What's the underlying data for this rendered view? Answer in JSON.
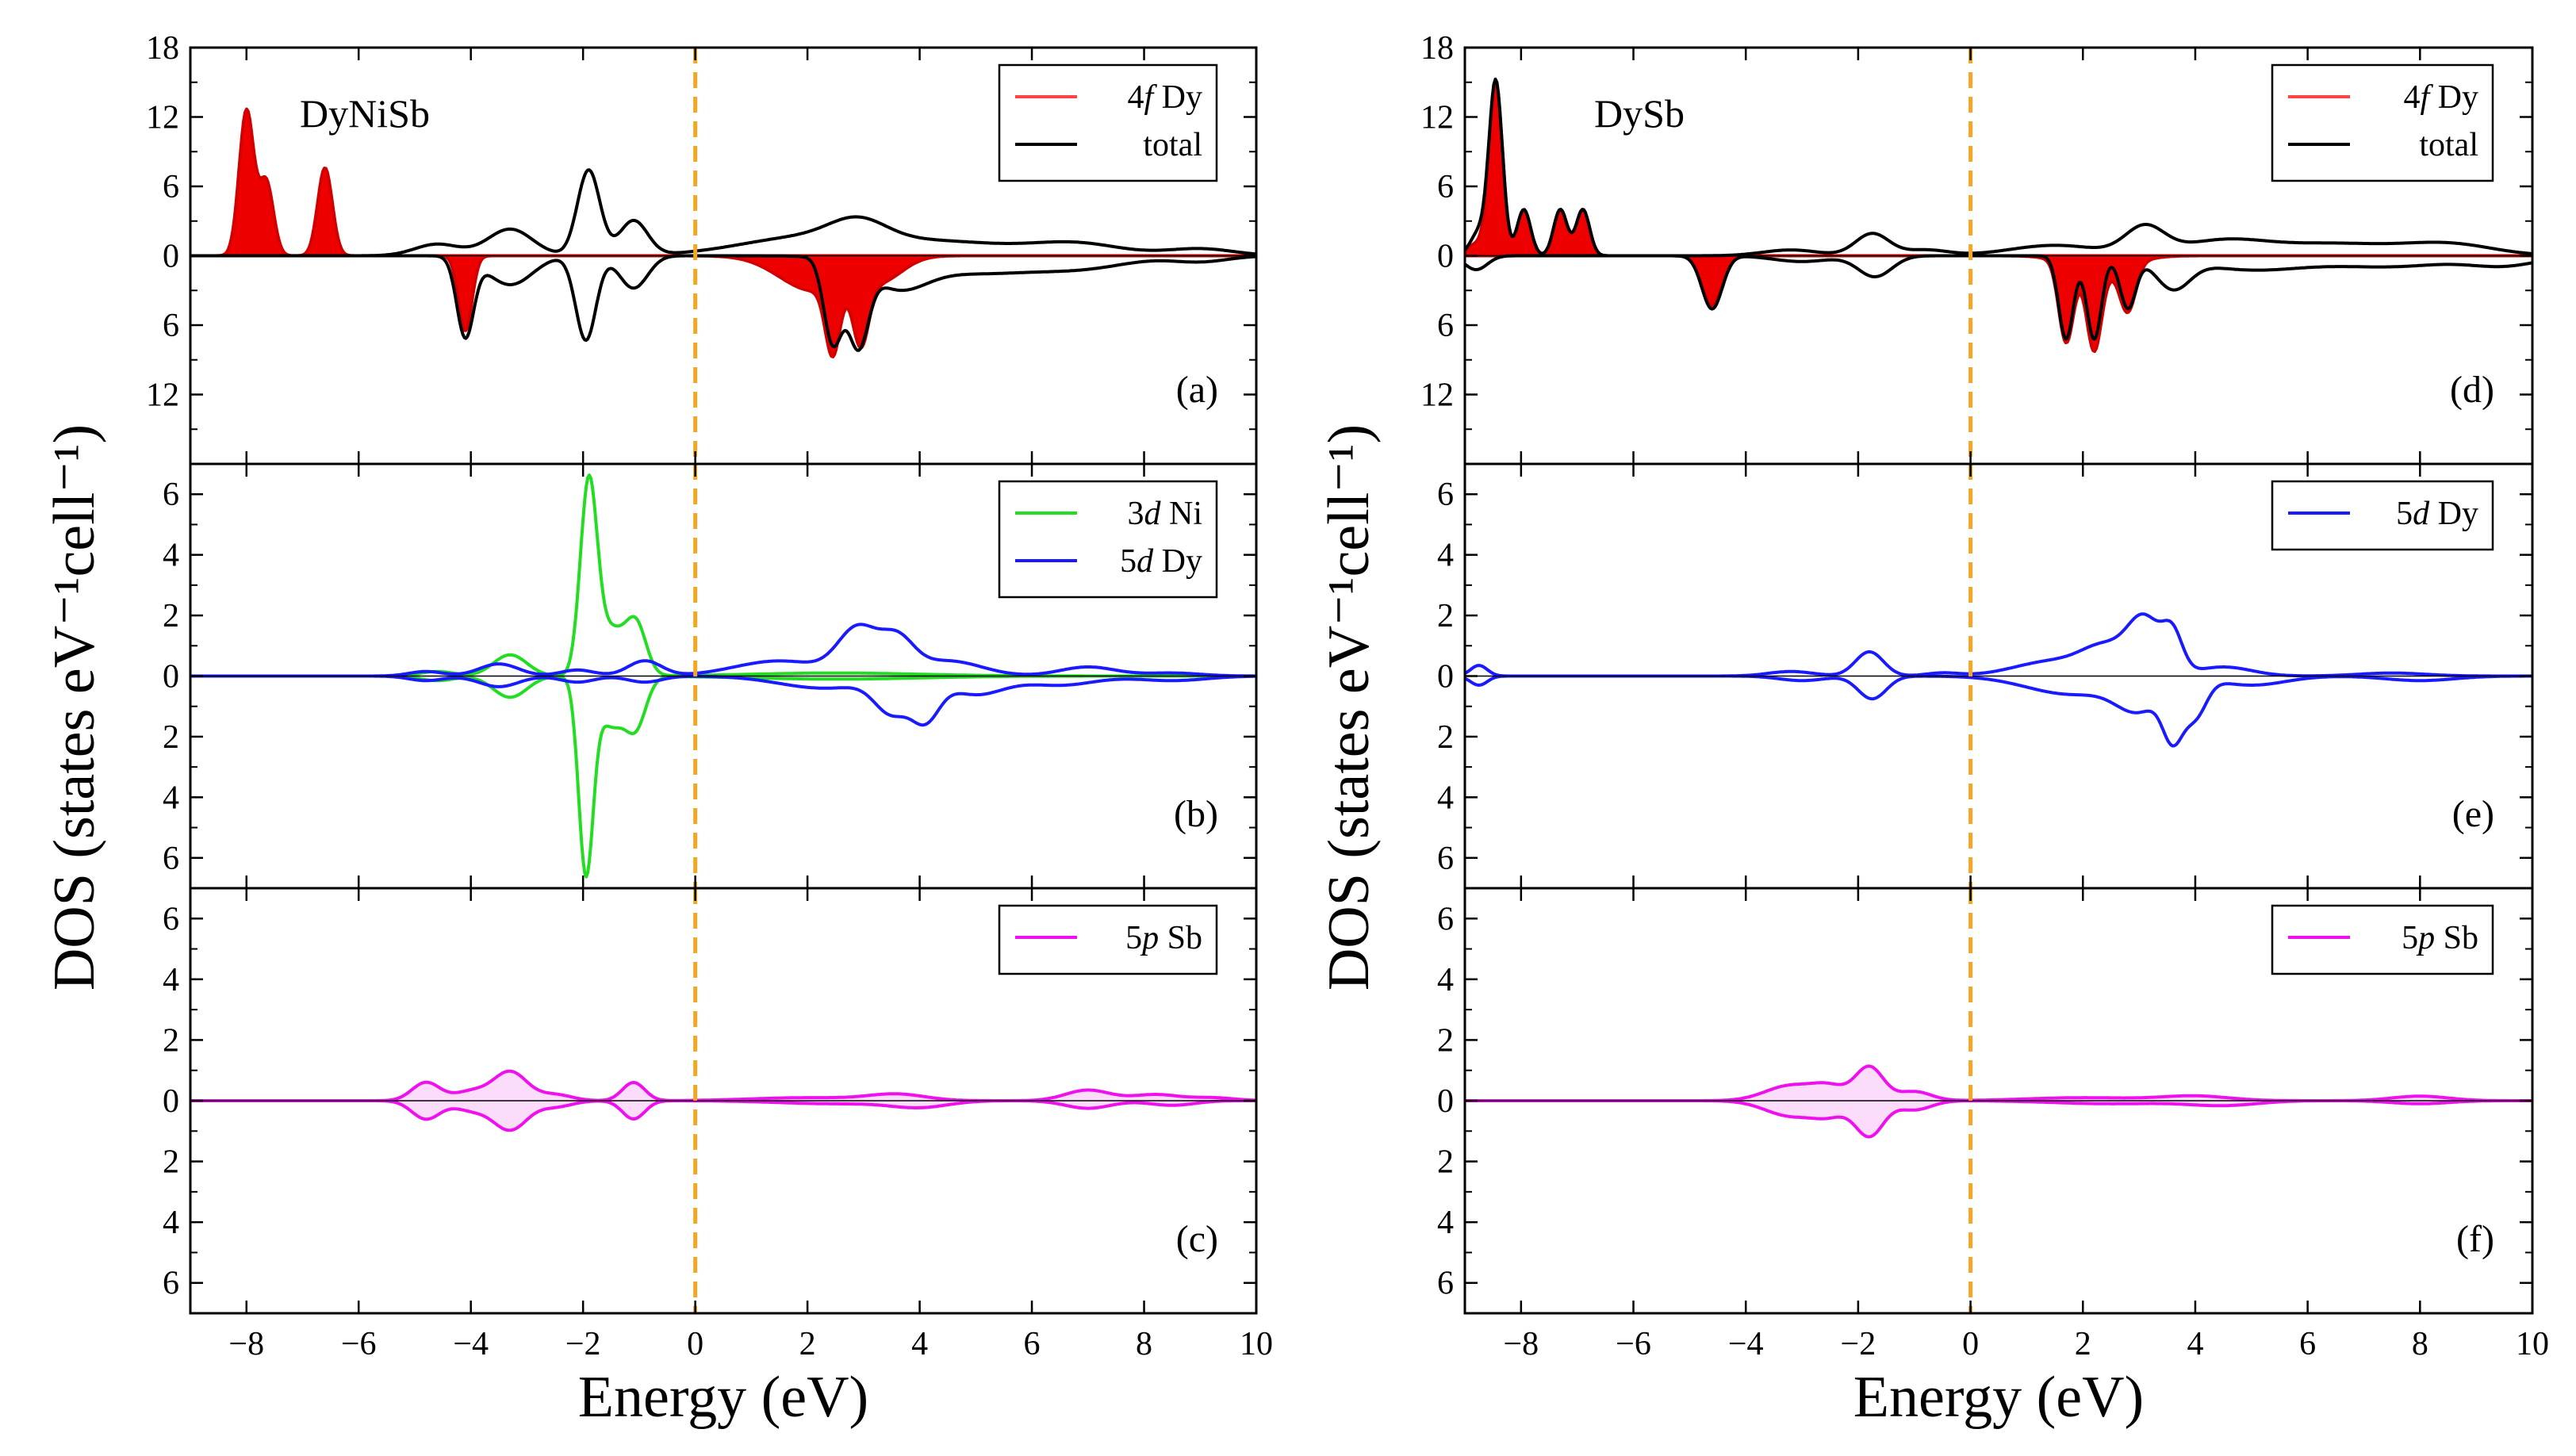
{
  "figure": {
    "ylabel": "DOS (states eV⁻¹cell⁻¹)",
    "fermi_color": "#f5a623"
  },
  "chart_data": [
    {
      "type": "line",
      "id": "a",
      "column": "left",
      "row": 0,
      "title": "DyNiSb",
      "panel_label": "(a)",
      "xlabel": "Energy (eV)",
      "xlim": [
        -9,
        10
      ],
      "xticks": [
        -8,
        -6,
        -4,
        -2,
        0,
        2,
        4,
        6,
        8,
        10
      ],
      "ylim_up": 18,
      "ylim_down": 18,
      "yticks_up": [
        18,
        12,
        6,
        0
      ],
      "yticks_down": [
        6,
        12
      ],
      "legend": [
        {
          "prefix": "4",
          "orb": "f",
          "suffix": " Dy",
          "color": "#ff4444"
        },
        {
          "prefix": "",
          "orb": "",
          "suffix": "total",
          "color": "#000000"
        }
      ],
      "series": [
        {
          "name": "4f Dy up",
          "color": "#d40000",
          "fill": "#ee0000",
          "spin": "up",
          "peaks": [
            [
              -8.0,
              12.5,
              0.13
            ],
            [
              -7.65,
              6.4,
              0.13
            ],
            [
              -6.6,
              7.6,
              0.13
            ]
          ]
        },
        {
          "name": "4f Dy down",
          "color": "#d40000",
          "fill": "#ee0000",
          "spin": "down",
          "peaks": [
            [
              -4.1,
              6.5,
              0.12
            ],
            [
              2.1,
              3.0,
              0.6
            ],
            [
              2.45,
              6.0,
              0.13
            ],
            [
              2.95,
              5.5,
              0.14
            ],
            [
              3.3,
              2.0,
              0.4
            ]
          ]
        },
        {
          "name": "total up",
          "color": "#000000",
          "spin": "up",
          "peaks": [
            [
              -4.6,
              1.0,
              0.4
            ],
            [
              -3.3,
              2.3,
              0.4
            ],
            [
              -1.9,
              7.4,
              0.2
            ],
            [
              -1.1,
              3.0,
              0.25
            ],
            [
              2.0,
              1.6,
              1.2
            ],
            [
              2.9,
              1.7,
              0.5
            ],
            [
              4.5,
              1.1,
              1.2
            ],
            [
              6.8,
              1.0,
              0.8
            ],
            [
              9.0,
              0.6,
              0.6
            ]
          ]
        },
        {
          "name": "total down",
          "color": "#000000",
          "spin": "down",
          "peaks": [
            [
              -4.1,
              6.8,
              0.15
            ],
            [
              -3.3,
              2.5,
              0.4
            ],
            [
              -1.95,
              7.3,
              0.18
            ],
            [
              -1.1,
              2.8,
              0.25
            ],
            [
              2.45,
              7.2,
              0.16
            ],
            [
              2.9,
              6.9,
              0.18
            ],
            [
              3.6,
              2.2,
              0.5
            ],
            [
              5.0,
              1.5,
              1.2
            ],
            [
              7.0,
              0.8,
              0.8
            ],
            [
              9.0,
              0.5,
              0.5
            ]
          ]
        }
      ]
    },
    {
      "type": "line",
      "id": "b",
      "column": "left",
      "row": 1,
      "title": "",
      "panel_label": "(b)",
      "xlabel": "Energy (eV)",
      "xlim": [
        -9,
        10
      ],
      "xticks": [
        -8,
        -6,
        -4,
        -2,
        0,
        2,
        4,
        6,
        8,
        10
      ],
      "ylim_up": 7,
      "ylim_down": 7,
      "yticks_up": [
        6,
        4,
        2,
        0
      ],
      "yticks_down": [
        2,
        4,
        6
      ],
      "legend": [
        {
          "prefix": "3",
          "orb": "d",
          "suffix": " Ni",
          "color": "#22dd22"
        },
        {
          "prefix": "5",
          "orb": "d",
          "suffix": " Dy",
          "color": "#1a1aff"
        }
      ],
      "series": [
        {
          "name": "3d Ni up",
          "color": "#22dd22",
          "spin": "up",
          "peaks": [
            [
              -3.3,
              0.7,
              0.3
            ],
            [
              -1.9,
              6.2,
              0.15
            ],
            [
              -1.5,
              1.5,
              0.25
            ],
            [
              -1.05,
              1.6,
              0.18
            ],
            [
              -4.6,
              0.15,
              0.3
            ],
            [
              2.5,
              0.1,
              1.5
            ]
          ]
        },
        {
          "name": "3d Ni down",
          "color": "#22dd22",
          "spin": "down",
          "peaks": [
            [
              -3.3,
              0.7,
              0.3
            ],
            [
              -1.95,
              6.3,
              0.13
            ],
            [
              -1.5,
              1.6,
              0.25
            ],
            [
              -1.05,
              1.5,
              0.18
            ],
            [
              -4.6,
              0.15,
              0.3
            ],
            [
              2.5,
              0.1,
              1.5
            ]
          ]
        },
        {
          "name": "5d Dy up",
          "color": "#1a1aff",
          "spin": "up",
          "peaks": [
            [
              -4.8,
              0.15,
              0.3
            ],
            [
              -3.5,
              0.4,
              0.35
            ],
            [
              -2.1,
              0.2,
              0.3
            ],
            [
              -0.9,
              0.5,
              0.3
            ],
            [
              1.5,
              0.5,
              0.8
            ],
            [
              2.9,
              1.5,
              0.35
            ],
            [
              3.6,
              1.1,
              0.3
            ],
            [
              4.5,
              0.5,
              0.6
            ],
            [
              7.0,
              0.3,
              0.5
            ],
            [
              8.5,
              0.1,
              0.5
            ]
          ]
        },
        {
          "name": "5d Dy down",
          "color": "#1a1aff",
          "spin": "down",
          "peaks": [
            [
              -4.8,
              0.15,
              0.3
            ],
            [
              -3.5,
              0.35,
              0.35
            ],
            [
              -2.1,
              0.2,
              0.3
            ],
            [
              -0.9,
              0.2,
              0.3
            ],
            [
              2.3,
              0.4,
              0.8
            ],
            [
              3.5,
              1.1,
              0.3
            ],
            [
              4.1,
              1.3,
              0.25
            ],
            [
              5.0,
              0.6,
              0.5
            ],
            [
              6.5,
              0.3,
              0.6
            ],
            [
              8.5,
              0.15,
              0.6
            ]
          ]
        }
      ]
    },
    {
      "type": "line",
      "id": "c",
      "column": "left",
      "row": 2,
      "title": "",
      "panel_label": "(c)",
      "xlabel": "Energy (eV)",
      "xlim": [
        -9,
        10
      ],
      "xticks": [
        -8,
        -6,
        -4,
        -2,
        0,
        2,
        4,
        6,
        8,
        10
      ],
      "ylim_up": 7,
      "ylim_down": 7,
      "yticks_up": [
        6,
        4,
        2,
        0
      ],
      "yticks_down": [
        2,
        4,
        6
      ],
      "legend": [
        {
          "prefix": "5",
          "orb": "p",
          "suffix": " Sb",
          "color": "#ee11ee"
        }
      ],
      "series": [
        {
          "name": "5p Sb up",
          "color": "#ee11ee",
          "fill": "#fbdcfb",
          "spin": "up",
          "peaks": [
            [
              -4.8,
              0.6,
              0.25
            ],
            [
              -4.0,
              0.3,
              0.3
            ],
            [
              -3.3,
              0.95,
              0.3
            ],
            [
              -2.5,
              0.2,
              0.3
            ],
            [
              -1.1,
              0.6,
              0.2
            ],
            [
              2.0,
              0.1,
              1.0
            ],
            [
              3.6,
              0.2,
              0.5
            ],
            [
              7.0,
              0.35,
              0.4
            ],
            [
              8.2,
              0.2,
              0.4
            ],
            [
              9.2,
              0.1,
              0.4
            ]
          ]
        },
        {
          "name": "5p Sb down",
          "color": "#ee11ee",
          "fill": "#fbdcfb",
          "spin": "down",
          "peaks": [
            [
              -4.8,
              0.6,
              0.25
            ],
            [
              -4.0,
              0.3,
              0.3
            ],
            [
              -3.3,
              0.95,
              0.3
            ],
            [
              -2.5,
              0.2,
              0.3
            ],
            [
              -1.1,
              0.6,
              0.2
            ],
            [
              2.5,
              0.1,
              1.0
            ],
            [
              4.0,
              0.2,
              0.5
            ],
            [
              7.0,
              0.25,
              0.4
            ],
            [
              8.5,
              0.15,
              0.4
            ]
          ]
        }
      ]
    },
    {
      "type": "line",
      "id": "d",
      "column": "right",
      "row": 0,
      "title": "DySb",
      "panel_label": "(d)",
      "xlabel": "Energy (eV)",
      "xlim": [
        -9,
        10
      ],
      "xticks": [
        -8,
        -6,
        -4,
        -2,
        0,
        2,
        4,
        6,
        8,
        10
      ],
      "ylim_up": 18,
      "ylim_down": 18,
      "yticks_up": [
        18,
        12,
        6,
        0
      ],
      "yticks_down": [
        6,
        12
      ],
      "legend": [
        {
          "prefix": "4",
          "orb": "f",
          "suffix": " Dy",
          "color": "#ff4444"
        },
        {
          "prefix": "",
          "orb": "",
          "suffix": "total",
          "color": "#000000"
        }
      ],
      "series": [
        {
          "name": "4f Dy up",
          "color": "#d40000",
          "fill": "#ee0000",
          "spin": "up",
          "peaks": [
            [
              -8.45,
              15.0,
              0.12
            ],
            [
              -7.95,
              4.0,
              0.12
            ],
            [
              -7.3,
              4.0,
              0.12
            ],
            [
              -6.9,
              4.0,
              0.12
            ],
            [
              -8.8,
              1.0,
              0.15
            ]
          ]
        },
        {
          "name": "4f Dy down",
          "color": "#d40000",
          "fill": "#ee0000",
          "spin": "down",
          "peaks": [
            [
              -4.6,
              4.3,
              0.18
            ],
            [
              1.7,
              6.8,
              0.13
            ],
            [
              2.2,
              6.8,
              0.13
            ],
            [
              2.8,
              4.0,
              0.14
            ],
            [
              2.3,
              1.5,
              0.5
            ]
          ]
        },
        {
          "name": "total up",
          "color": "#000000",
          "spin": "up",
          "peaks": [
            [
              -8.75,
              2.0,
              0.15
            ],
            [
              -8.45,
              15.0,
              0.12
            ],
            [
              -7.95,
              4.0,
              0.12
            ],
            [
              -7.3,
              4.0,
              0.12
            ],
            [
              -6.9,
              4.0,
              0.12
            ],
            [
              -3.2,
              0.5,
              0.5
            ],
            [
              -1.75,
              1.9,
              0.3
            ],
            [
              -0.8,
              0.5,
              0.4
            ],
            [
              1.5,
              0.9,
              0.8
            ],
            [
              3.1,
              2.3,
              0.35
            ],
            [
              4.5,
              1.3,
              0.8
            ],
            [
              6.5,
              1.0,
              1.0
            ],
            [
              8.5,
              1.0,
              0.8
            ]
          ]
        },
        {
          "name": "total down",
          "color": "#000000",
          "spin": "down",
          "peaks": [
            [
              -8.8,
              1.2,
              0.2
            ],
            [
              -4.6,
              4.6,
              0.18
            ],
            [
              -3.0,
              0.5,
              0.5
            ],
            [
              -1.7,
              1.8,
              0.3
            ],
            [
              1.7,
              7.2,
              0.13
            ],
            [
              2.2,
              7.2,
              0.13
            ],
            [
              2.8,
              4.4,
              0.14
            ],
            [
              3.6,
              2.5,
              0.3
            ],
            [
              5.0,
              1.2,
              1.0
            ],
            [
              7.5,
              0.9,
              1.0
            ],
            [
              9.5,
              0.8,
              0.6
            ]
          ]
        }
      ]
    },
    {
      "type": "line",
      "id": "e",
      "column": "right",
      "row": 1,
      "title": "",
      "panel_label": "(e)",
      "xlabel": "Energy (eV)",
      "xlim": [
        -9,
        10
      ],
      "xticks": [
        -8,
        -6,
        -4,
        -2,
        0,
        2,
        4,
        6,
        8,
        10
      ],
      "ylim_up": 7,
      "ylim_down": 7,
      "yticks_up": [
        6,
        4,
        2,
        0
      ],
      "yticks_down": [
        2,
        4,
        6
      ],
      "legend": [
        {
          "prefix": "5",
          "orb": "d",
          "suffix": " Dy",
          "color": "#1a1aff"
        }
      ],
      "series": [
        {
          "name": "5d Dy up",
          "color": "#1a1aff",
          "spin": "up",
          "peaks": [
            [
              -8.75,
              0.35,
              0.15
            ],
            [
              -3.2,
              0.15,
              0.4
            ],
            [
              -1.8,
              0.8,
              0.25
            ],
            [
              -0.5,
              0.1,
              0.3
            ],
            [
              1.5,
              0.5,
              0.7
            ],
            [
              2.4,
              0.8,
              0.4
            ],
            [
              3.1,
              1.8,
              0.3
            ],
            [
              3.6,
              1.2,
              0.18
            ],
            [
              4.5,
              0.3,
              0.5
            ],
            [
              7.5,
              0.1,
              0.6
            ]
          ]
        },
        {
          "name": "5d Dy down",
          "color": "#1a1aff",
          "spin": "down",
          "peaks": [
            [
              -8.75,
              0.3,
              0.15
            ],
            [
              -3.0,
              0.15,
              0.4
            ],
            [
              -1.75,
              0.75,
              0.25
            ],
            [
              1.8,
              0.6,
              0.8
            ],
            [
              3.0,
              1.0,
              0.4
            ],
            [
              3.6,
              1.75,
              0.18
            ],
            [
              4.0,
              1.2,
              0.2
            ],
            [
              5.0,
              0.3,
              0.6
            ],
            [
              8.0,
              0.15,
              0.6
            ]
          ]
        }
      ]
    },
    {
      "type": "line",
      "id": "f",
      "column": "right",
      "row": 2,
      "title": "",
      "panel_label": "(f)",
      "xlabel": "Energy (eV)",
      "xlim": [
        -9,
        10
      ],
      "xticks": [
        -8,
        -6,
        -4,
        -2,
        0,
        2,
        4,
        6,
        8,
        10
      ],
      "ylim_up": 7,
      "ylim_down": 7,
      "yticks_up": [
        6,
        4,
        2,
        0
      ],
      "yticks_down": [
        2,
        4,
        6
      ],
      "legend": [
        {
          "prefix": "5",
          "orb": "p",
          "suffix": " Sb",
          "color": "#ee11ee"
        }
      ],
      "series": [
        {
          "name": "5p Sb up",
          "color": "#ee11ee",
          "fill": "#fbdcfb",
          "spin": "up",
          "peaks": [
            [
              -3.2,
              0.5,
              0.45
            ],
            [
              -2.5,
              0.4,
              0.3
            ],
            [
              -1.8,
              1.1,
              0.25
            ],
            [
              -1.0,
              0.3,
              0.3
            ],
            [
              2.0,
              0.1,
              1.0
            ],
            [
              4.0,
              0.15,
              0.6
            ],
            [
              8.0,
              0.15,
              0.5
            ]
          ]
        },
        {
          "name": "5p Sb down",
          "color": "#ee11ee",
          "fill": "#fbdcfb",
          "spin": "down",
          "peaks": [
            [
              -3.2,
              0.5,
              0.45
            ],
            [
              -2.5,
              0.4,
              0.3
            ],
            [
              -1.8,
              1.15,
              0.25
            ],
            [
              -1.0,
              0.3,
              0.3
            ],
            [
              2.5,
              0.1,
              1.0
            ],
            [
              4.5,
              0.15,
              0.6
            ],
            [
              8.0,
              0.1,
              0.5
            ]
          ]
        }
      ]
    }
  ]
}
